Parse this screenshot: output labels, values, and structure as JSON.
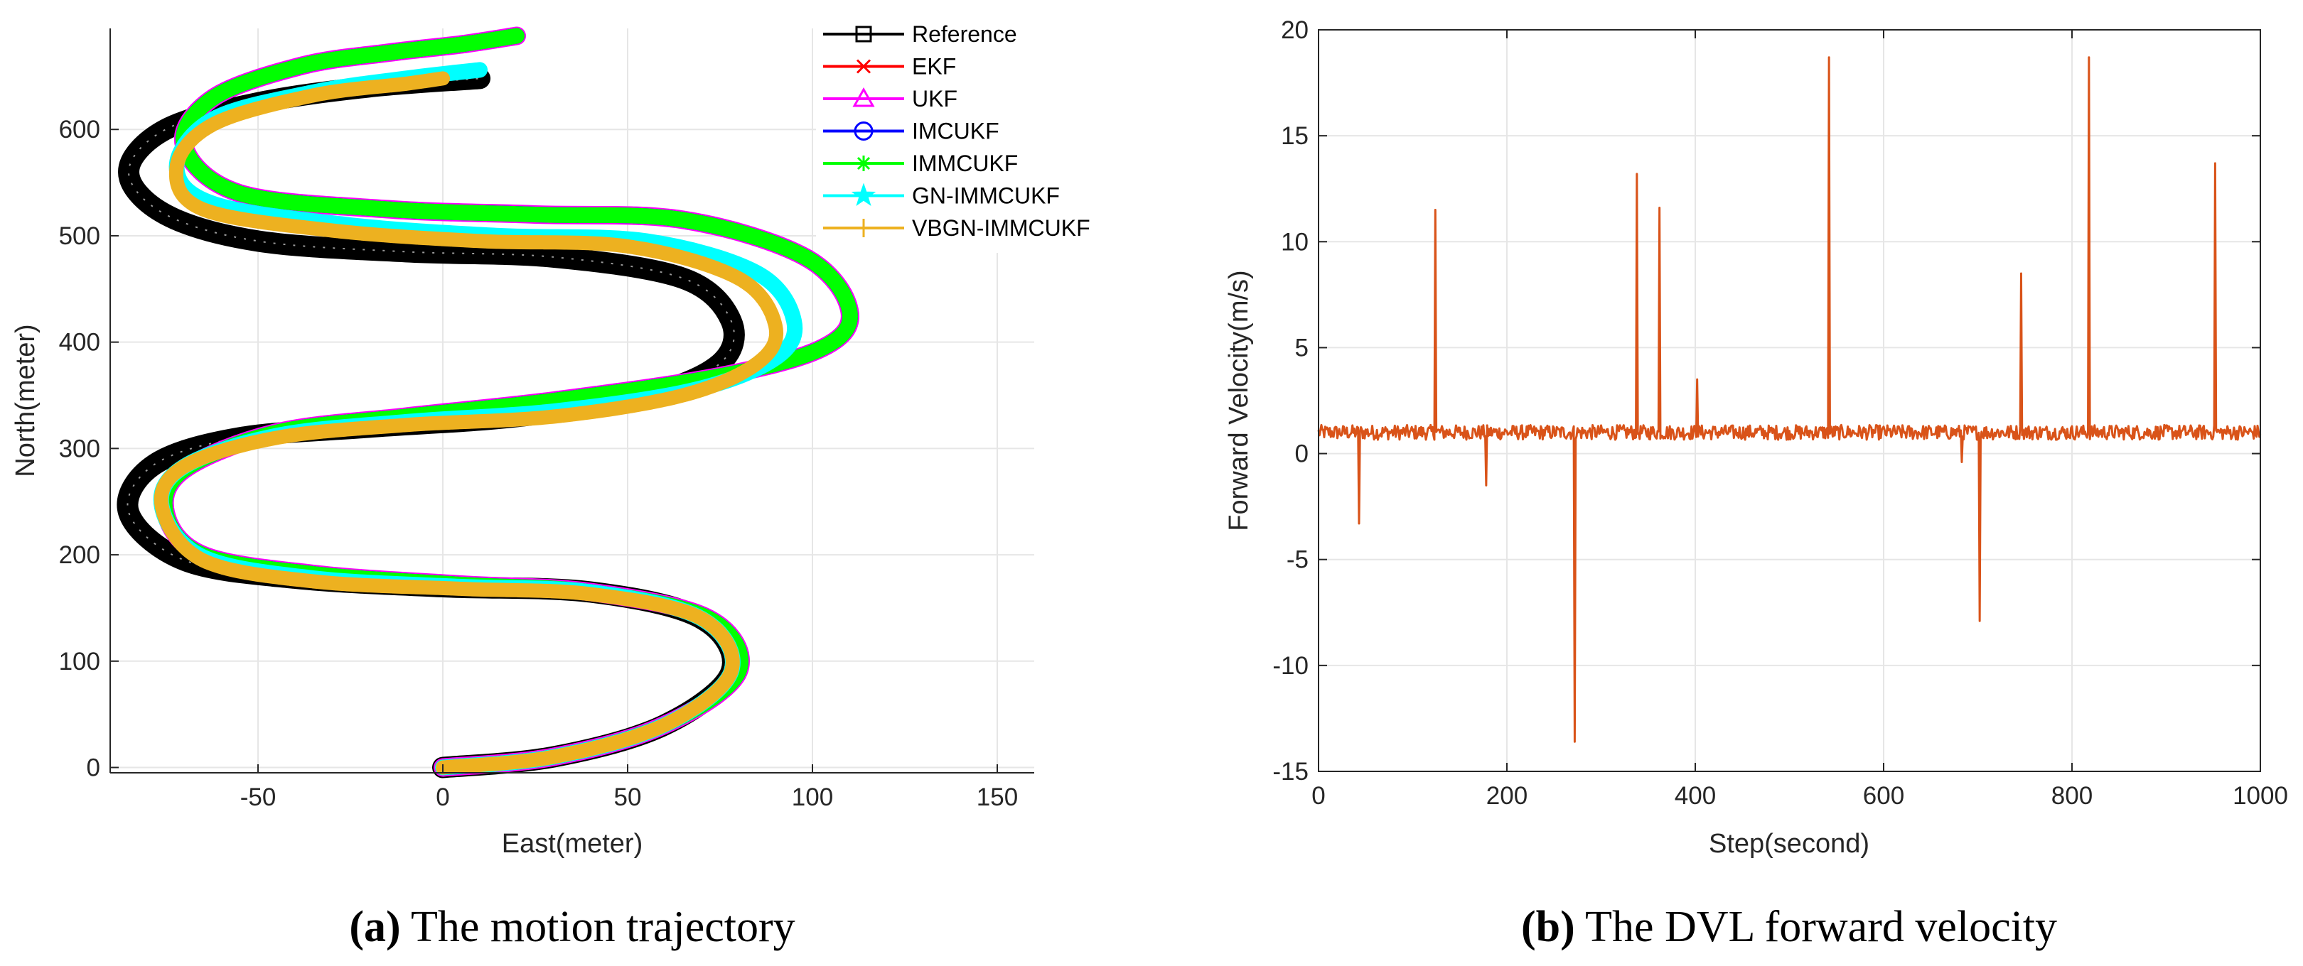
{
  "chart_data": [
    {
      "type": "line",
      "xlabel": "East(meter)",
      "ylabel": "North(meter)",
      "xlim": [
        -90,
        160
      ],
      "ylim": [
        -5,
        695
      ],
      "xticks": [
        -50,
        0,
        50,
        100,
        150
      ],
      "yticks": [
        0,
        100,
        200,
        300,
        400,
        500,
        600
      ],
      "xtick_labels": [
        "-50",
        "0",
        "50",
        "100",
        "150"
      ],
      "ytick_labels": [
        "0",
        "100",
        "200",
        "300",
        "400",
        "500",
        "600"
      ],
      "grid": true,
      "legend_position": "top-right",
      "series": [
        {
          "name": "Reference",
          "color": "#000000",
          "marker": "square",
          "x": [
            0,
            30,
            60,
            78,
            70,
            40,
            0,
            -40,
            -70,
            -85,
            -78,
            -55,
            -20,
            20,
            55,
            75,
            78,
            65,
            30,
            -10,
            -50,
            -75,
            -85,
            -75,
            -50,
            -20,
            10
          ],
          "y": [
            0,
            10,
            40,
            90,
            140,
            165,
            170,
            178,
            195,
            240,
            285,
            310,
            320,
            330,
            350,
            380,
            420,
            460,
            480,
            485,
            495,
            520,
            560,
            600,
            625,
            640,
            648
          ]
        },
        {
          "name": "EKF",
          "color": "#ff0000",
          "marker": "x",
          "x": [
            0,
            30,
            60,
            80,
            72,
            40,
            5,
            -35,
            -65,
            -75,
            -70,
            -45,
            -10,
            30,
            75,
            103,
            110,
            98,
            65,
            25,
            -15,
            -55,
            -70,
            -62,
            -38,
            -15,
            5,
            20
          ],
          "y": [
            0,
            10,
            40,
            90,
            140,
            165,
            172,
            182,
            200,
            240,
            280,
            315,
            330,
            345,
            368,
            395,
            430,
            480,
            515,
            520,
            525,
            540,
            585,
            630,
            660,
            672,
            680,
            688
          ]
        },
        {
          "name": "UKF",
          "color": "#ff00ff",
          "marker": "triangle",
          "x": [
            0,
            30,
            60,
            80,
            72,
            40,
            5,
            -35,
            -65,
            -75,
            -70,
            -45,
            -10,
            30,
            75,
            103,
            110,
            98,
            65,
            25,
            -15,
            -55,
            -70,
            -62,
            -38,
            -15,
            5,
            20
          ],
          "y": [
            0,
            10,
            40,
            90,
            140,
            165,
            172,
            182,
            200,
            240,
            280,
            315,
            330,
            345,
            368,
            395,
            430,
            480,
            515,
            520,
            525,
            540,
            585,
            630,
            660,
            672,
            680,
            688
          ]
        },
        {
          "name": "IMCUKF",
          "color": "#0000ff",
          "marker": "circle",
          "x": [
            0,
            30,
            60,
            80,
            72,
            40,
            5,
            -35,
            -65,
            -75,
            -70,
            -45,
            -10,
            30,
            75,
            103,
            110,
            98,
            65,
            25,
            -15,
            -55,
            -70,
            -62,
            -38,
            -15,
            5,
            20
          ],
          "y": [
            0,
            10,
            40,
            90,
            140,
            165,
            172,
            182,
            200,
            240,
            280,
            315,
            330,
            345,
            368,
            395,
            430,
            480,
            515,
            520,
            525,
            540,
            585,
            630,
            660,
            672,
            680,
            688
          ]
        },
        {
          "name": "IMMCUKF",
          "color": "#00ff00",
          "marker": "asterisk",
          "x": [
            0,
            30,
            60,
            80,
            72,
            40,
            5,
            -35,
            -65,
            -75,
            -70,
            -45,
            -10,
            30,
            75,
            103,
            110,
            98,
            65,
            25,
            -15,
            -55,
            -70,
            -62,
            -38,
            -15,
            5,
            20
          ],
          "y": [
            0,
            10,
            40,
            90,
            140,
            165,
            172,
            182,
            200,
            240,
            280,
            315,
            330,
            345,
            368,
            395,
            430,
            480,
            515,
            520,
            525,
            540,
            585,
            630,
            660,
            672,
            680,
            688
          ]
        },
        {
          "name": "GN-IMMCUKF",
          "color": "#00ffff",
          "marker": "pentagram",
          "x": [
            0,
            30,
            60,
            78,
            70,
            40,
            5,
            -35,
            -65,
            -76,
            -70,
            -45,
            -10,
            30,
            68,
            90,
            95,
            85,
            55,
            15,
            -25,
            -62,
            -72,
            -62,
            -35,
            -10,
            10
          ],
          "y": [
            0,
            10,
            40,
            90,
            140,
            165,
            170,
            178,
            198,
            245,
            283,
            312,
            325,
            335,
            355,
            385,
            420,
            465,
            495,
            500,
            510,
            530,
            565,
            610,
            635,
            648,
            656
          ]
        },
        {
          "name": "VBGN-IMMCUKF",
          "color": "#edb120",
          "marker": "plus",
          "x": [
            0,
            30,
            60,
            78,
            70,
            40,
            5,
            -35,
            -65,
            -76,
            -70,
            -45,
            -10,
            30,
            65,
            85,
            90,
            80,
            50,
            10,
            -30,
            -65,
            -72,
            -62,
            -35,
            -10,
            0
          ],
          "y": [
            0,
            10,
            40,
            90,
            140,
            163,
            168,
            175,
            195,
            245,
            283,
            310,
            322,
            330,
            350,
            380,
            415,
            460,
            490,
            495,
            505,
            525,
            565,
            605,
            632,
            643,
            648
          ]
        }
      ]
    },
    {
      "type": "line",
      "xlabel": "Step(second)",
      "ylabel": "Forward Velocity(m/s)",
      "xlim": [
        0,
        1000
      ],
      "ylim": [
        -15,
        20
      ],
      "xticks": [
        0,
        200,
        400,
        600,
        800,
        1000
      ],
      "yticks": [
        -15,
        -10,
        -5,
        0,
        5,
        10,
        15,
        20
      ],
      "xtick_labels": [
        "0",
        "200",
        "400",
        "600",
        "800",
        "1000"
      ],
      "ytick_labels": [
        "-15",
        "-10",
        "-5",
        "0",
        "5",
        "10",
        "15",
        "20"
      ],
      "grid": true,
      "series": [
        {
          "name": "Forward velocity",
          "color": "#d95319",
          "baseline": 1.0,
          "noise_amplitude": 0.35,
          "spikes": {
            "x": [
              43,
              124,
              178,
              272,
              338,
              362,
              402,
              542,
              683,
              702,
              746,
              818,
              952
            ],
            "y": [
              -3.3,
              11.5,
              -1.5,
              -13.6,
              13.2,
              11.6,
              3.5,
              18.7,
              -0.4,
              -7.9,
              8.5,
              18.7,
              13.7
            ]
          }
        }
      ]
    }
  ],
  "captions": {
    "a": {
      "label": "(a)",
      "text": " The motion trajectory"
    },
    "b": {
      "label": "(b)",
      "text": " The DVL forward velocity"
    }
  }
}
